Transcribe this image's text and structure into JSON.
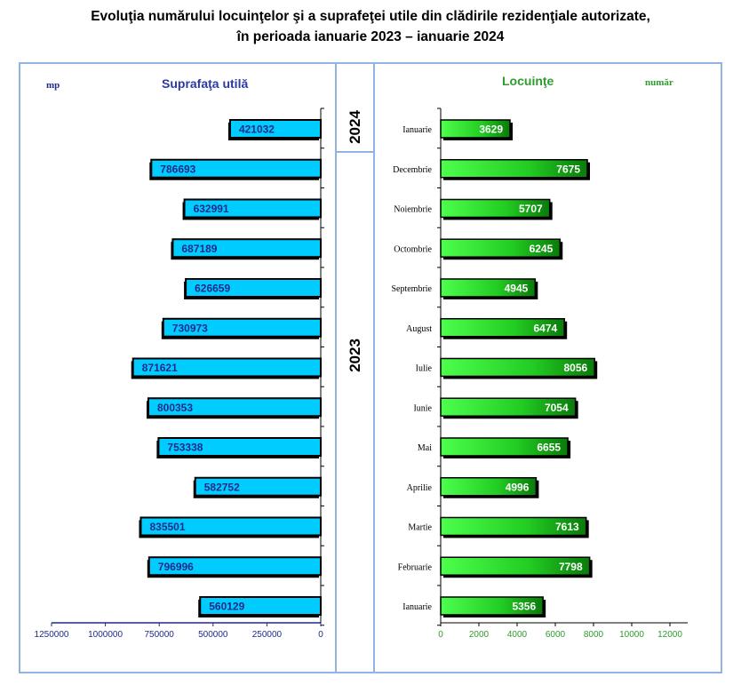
{
  "title": {
    "line1": "Evoluţia numărului locuinţelor şi a suprafeţei utile din clădirile rezidenţiale autorizate,",
    "line2": "în perioada ianuarie 2023 – ianuarie 2024"
  },
  "years": [
    "2024",
    "2023"
  ],
  "colors": {
    "left_bar": "#00ccff",
    "left_label": "#1f2a8a",
    "right_bar": "#22dd22",
    "right_label": "#ffffff",
    "frame": "#8fb4e3",
    "shadow": "#000000"
  },
  "chart_data": [
    {
      "type": "bar",
      "orientation": "horizontal",
      "title": "Suprafaţa utilă",
      "unit": "mp",
      "categories": [
        "Ianuarie",
        "Decembrie",
        "Noiembrie",
        "Octombrie",
        "Septembrie",
        "August",
        "Iulie",
        "Iunie",
        "Mai",
        "Aprilie",
        "Martie",
        "Februarie",
        "Ianuarie"
      ],
      "values": [
        421032,
        786693,
        632991,
        687189,
        626659,
        730973,
        871621,
        800353,
        753338,
        582752,
        835501,
        796996,
        560129
      ],
      "xlim": [
        1250000,
        0
      ],
      "xticks": [
        "1250000",
        "1000000",
        "750000",
        "500000",
        "250000",
        "0"
      ],
      "direction": "reversed"
    },
    {
      "type": "bar",
      "orientation": "horizontal",
      "title": "Locuinţe",
      "unit": "număr",
      "categories": [
        "Ianuarie",
        "Decembrie",
        "Noiembrie",
        "Octombrie",
        "Septembrie",
        "August",
        "Iulie",
        "Iunie",
        "Mai",
        "Aprilie",
        "Martie",
        "Februarie",
        "Ianuarie"
      ],
      "values": [
        3629,
        7675,
        5707,
        6245,
        4945,
        6474,
        8056,
        7054,
        6655,
        4996,
        7613,
        7798,
        5356
      ],
      "xlim": [
        0,
        12000
      ],
      "xticks": [
        "0",
        "2000",
        "4000",
        "6000",
        "8000",
        "10000",
        "12000"
      ]
    }
  ]
}
